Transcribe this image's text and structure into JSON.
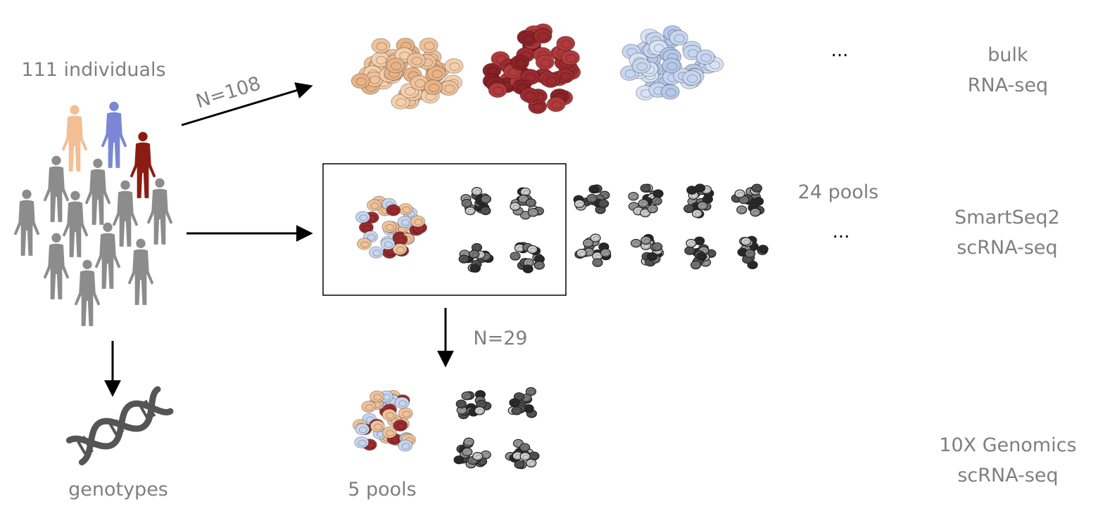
{
  "labels": {
    "individuals": "111 individuals",
    "genotypes": "genotypes",
    "n_bulk": "N=108",
    "n_tenx": "N=29",
    "pools_smartseq": "24 pools",
    "pools_tenx": "5 pools",
    "ellipsis_bulk": "...",
    "ellipsis_smartseq": "...",
    "bulk_line1": "bulk",
    "bulk_line2": "RNA-seq",
    "smartseq_line1": "SmartSeq2",
    "smartseq_line2": "scRNA-seq",
    "tenx_line1": "10X Genomics",
    "tenx_line2": "scRNA-seq"
  },
  "colors": {
    "text": "#7f7f7f",
    "arrow": "#000000",
    "person_gray": "#8c8c8c",
    "person_peach": "#f2bf94",
    "person_blue": "#7b87d6",
    "person_red": "#8c1c13",
    "cell_peach": "#efc29a",
    "cell_red": "#9b2b2e",
    "cell_blue": "#c7d6f0",
    "dna": "#555555"
  },
  "icons": {
    "people": "human-figure-icon",
    "dna": "dna-helix-icon",
    "cluster": "cell-cluster-icon"
  }
}
